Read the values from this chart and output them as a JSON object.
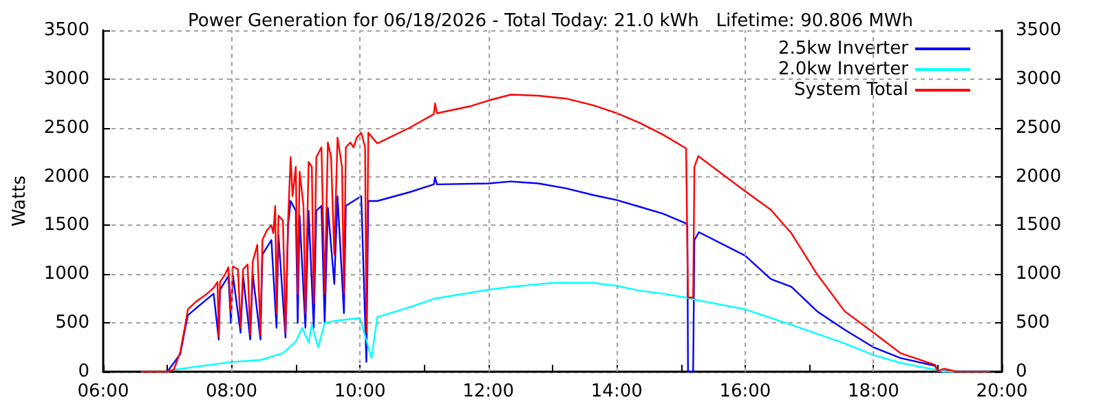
{
  "chart_data": {
    "type": "line",
    "title": "Power Generation for 06/18/2026 - Total Today: 21.0 kWh   Lifetime: 90.806 MWh",
    "ylabel": "Watts",
    "xlim": [
      6,
      20
    ],
    "xticks": [
      {
        "value": 6,
        "label": "06:00"
      },
      {
        "value": 7,
        "label": null
      },
      {
        "value": 8,
        "label": "08:00"
      },
      {
        "value": 9,
        "label": null
      },
      {
        "value": 10,
        "label": "10:00"
      },
      {
        "value": 11,
        "label": null
      },
      {
        "value": 12,
        "label": "12:00"
      },
      {
        "value": 13,
        "label": null
      },
      {
        "value": 14,
        "label": "14:00"
      },
      {
        "value": 15,
        "label": null
      },
      {
        "value": 16,
        "label": "16:00"
      },
      {
        "value": 17,
        "label": null
      },
      {
        "value": 18,
        "label": "18:00"
      },
      {
        "value": 19,
        "label": null
      },
      {
        "value": 20,
        "label": "20:00"
      }
    ],
    "ylim": [
      0,
      3500
    ],
    "yticks": [
      0,
      500,
      1000,
      1500,
      2000,
      2500,
      3000,
      3500
    ],
    "y2lim": [
      0,
      3500
    ],
    "y2ticks": [
      0,
      500,
      1000,
      1500,
      2000,
      2500,
      3000,
      3500
    ],
    "grid": true,
    "legend": "top right",
    "marker": "none",
    "line_style": "solid",
    "series": [
      {
        "name": "2.5kw Inverter",
        "color": "#0000ff",
        "x": [
          7.0,
          7.2,
          7.27,
          7.32,
          7.5,
          7.72,
          7.8,
          7.82,
          7.95,
          7.99,
          8.02,
          8.14,
          8.18,
          8.29,
          8.33,
          8.45,
          8.48,
          8.62,
          8.7,
          8.73,
          8.84,
          8.88,
          8.92,
          9.0,
          9.03,
          9.06,
          9.15,
          9.2,
          9.28,
          9.32,
          9.4,
          9.45,
          9.5,
          9.6,
          9.65,
          9.75,
          9.78,
          9.9,
          10.02,
          10.1,
          10.13,
          10.27,
          10.77,
          11.15,
          11.17,
          11.2,
          12.0,
          12.35,
          12.78,
          13.21,
          13.64,
          14.0,
          14.36,
          14.72,
          15.08,
          15.1,
          15.11,
          15.19,
          15.21,
          15.28,
          16.0,
          16.4,
          16.72,
          17.12,
          17.55,
          18.0,
          18.42,
          18.96,
          19.0,
          19.8
        ],
        "values": [
          0,
          180,
          420,
          580,
          680,
          800,
          330,
          840,
          980,
          500,
          990,
          400,
          980,
          330,
          1000,
          330,
          1200,
          1350,
          450,
          1400,
          350,
          1500,
          1750,
          1650,
          500,
          1600,
          450,
          1650,
          450,
          1650,
          1700,
          500,
          1680,
          900,
          1800,
          600,
          1700,
          1750,
          1800,
          100,
          1750,
          1750,
          1840,
          1920,
          1990,
          1920,
          1930,
          1950,
          1930,
          1880,
          1810,
          1760,
          1690,
          1620,
          1520,
          1500,
          0,
          0,
          1350,
          1430,
          1190,
          950,
          870,
          620,
          430,
          250,
          140,
          60,
          0,
          0
        ]
      },
      {
        "name": "2.0kw Inverter",
        "color": "#00ffff",
        "x": [
          7.0,
          7.1,
          8.0,
          8.45,
          8.8,
          9.0,
          9.1,
          9.2,
          9.25,
          9.35,
          9.45,
          9.6,
          10.0,
          10.18,
          10.27,
          10.77,
          11.17,
          12.0,
          12.35,
          13.0,
          13.64,
          14.0,
          14.36,
          14.72,
          15.08,
          15.28,
          16.0,
          16.72,
          17.55,
          18.0,
          18.42,
          18.96,
          19.1,
          19.8
        ],
        "values": [
          0,
          20,
          100,
          120,
          190,
          310,
          450,
          300,
          480,
          250,
          500,
          520,
          550,
          140,
          560,
          660,
          750,
          840,
          870,
          910,
          910,
          880,
          830,
          800,
          760,
          730,
          640,
          480,
          290,
          170,
          90,
          20,
          0,
          0
        ]
      },
      {
        "name": "System Total",
        "color": "#ff0000",
        "x": [
          6.6,
          7.0,
          7.1,
          7.2,
          7.27,
          7.32,
          7.45,
          7.6,
          7.72,
          7.78,
          7.8,
          7.82,
          7.9,
          7.95,
          7.99,
          8.02,
          8.1,
          8.14,
          8.18,
          8.25,
          8.29,
          8.33,
          8.4,
          8.45,
          8.48,
          8.55,
          8.62,
          8.65,
          8.68,
          8.7,
          8.73,
          8.8,
          8.84,
          8.88,
          8.92,
          8.95,
          9.0,
          9.03,
          9.06,
          9.12,
          9.15,
          9.2,
          9.25,
          9.28,
          9.32,
          9.4,
          9.45,
          9.5,
          9.55,
          9.6,
          9.65,
          9.72,
          9.75,
          9.78,
          9.85,
          9.9,
          9.95,
          10.02,
          10.08,
          10.1,
          10.13,
          10.27,
          10.77,
          11.15,
          11.17,
          11.2,
          11.71,
          12.0,
          12.35,
          12.78,
          13.21,
          13.64,
          14.0,
          14.36,
          14.72,
          15.08,
          15.11,
          15.19,
          15.21,
          15.27,
          16.0,
          16.4,
          16.72,
          17.12,
          17.55,
          18.0,
          18.42,
          18.96,
          19.0,
          19.1,
          19.3,
          19.8
        ],
        "values": [
          0,
          0,
          20,
          200,
          450,
          640,
          720,
          790,
          860,
          920,
          360,
          920,
          1000,
          1070,
          620,
          1080,
          1050,
          450,
          1050,
          1100,
          380,
          1130,
          1300,
          380,
          1350,
          1450,
          1500,
          1420,
          1700,
          600,
          1600,
          1550,
          400,
          1550,
          2200,
          1800,
          2100,
          800,
          2050,
          1700,
          600,
          2150,
          2100,
          700,
          2200,
          2300,
          800,
          2350,
          2200,
          1200,
          2400,
          2100,
          800,
          2300,
          2350,
          2300,
          2400,
          2450,
          2300,
          400,
          2450,
          2340,
          2500,
          2640,
          2750,
          2650,
          2720,
          2780,
          2840,
          2830,
          2800,
          2730,
          2650,
          2550,
          2430,
          2290,
          760,
          760,
          2100,
          2210,
          1850,
          1660,
          1420,
          1000,
          620,
          400,
          190,
          70,
          10,
          30,
          0,
          0
        ]
      }
    ]
  }
}
